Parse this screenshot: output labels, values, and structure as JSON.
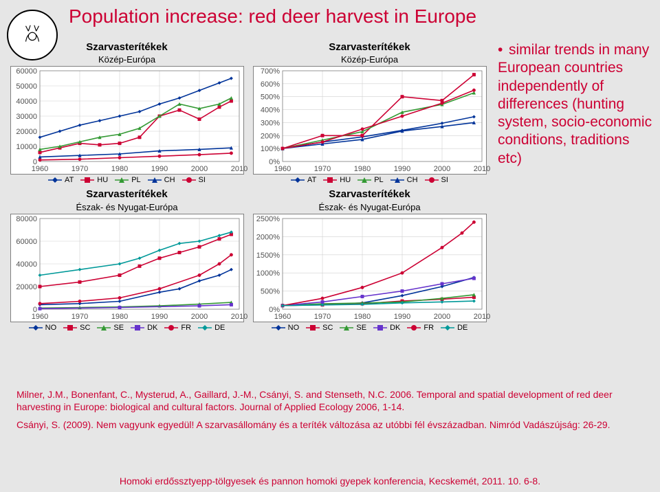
{
  "title": "Population increase: red deer harvest in Europe",
  "bullet": {
    "marker": "•",
    "text": "similar trends in many European countries independently of differences (hunting system, socio-economic conditions, traditions etc)"
  },
  "charts": {
    "common_title": "Szarvasterítékek",
    "regions": {
      "central": "Közép-Európa",
      "north_west": "Észak- és Nyugat-Európa"
    },
    "x_axis": {
      "min": 1960,
      "max": 2010,
      "ticks": [
        1960,
        1970,
        1980,
        1990,
        2000,
        2010
      ]
    },
    "top_left": {
      "type": "line",
      "y_axis": {
        "min": 0,
        "max": 60000,
        "ticks": [
          0,
          10000,
          20000,
          30000,
          40000,
          50000,
          60000
        ]
      },
      "series": [
        {
          "label": "AT",
          "color": "#003399",
          "marker": "diamond",
          "values": [
            {
              "x": 1960,
              "y": 16000
            },
            {
              "x": 1965,
              "y": 20000
            },
            {
              "x": 1970,
              "y": 24000
            },
            {
              "x": 1975,
              "y": 27000
            },
            {
              "x": 1980,
              "y": 30000
            },
            {
              "x": 1985,
              "y": 33000
            },
            {
              "x": 1990,
              "y": 38000
            },
            {
              "x": 1995,
              "y": 42000
            },
            {
              "x": 2000,
              "y": 47000
            },
            {
              "x": 2005,
              "y": 52000
            },
            {
              "x": 2008,
              "y": 55000
            }
          ]
        },
        {
          "label": "HU",
          "color": "#cc0033",
          "marker": "square",
          "values": [
            {
              "x": 1960,
              "y": 6000
            },
            {
              "x": 1965,
              "y": 9000
            },
            {
              "x": 1970,
              "y": 12000
            },
            {
              "x": 1975,
              "y": 11000
            },
            {
              "x": 1980,
              "y": 12000
            },
            {
              "x": 1985,
              "y": 16000
            },
            {
              "x": 1990,
              "y": 30000
            },
            {
              "x": 1995,
              "y": 34000
            },
            {
              "x": 2000,
              "y": 28000
            },
            {
              "x": 2005,
              "y": 36000
            },
            {
              "x": 2008,
              "y": 40000
            }
          ]
        },
        {
          "label": "PL",
          "color": "#339933",
          "marker": "triangle",
          "values": [
            {
              "x": 1960,
              "y": 8000
            },
            {
              "x": 1965,
              "y": 10000
            },
            {
              "x": 1970,
              "y": 13000
            },
            {
              "x": 1975,
              "y": 16000
            },
            {
              "x": 1980,
              "y": 18000
            },
            {
              "x": 1985,
              "y": 22000
            },
            {
              "x": 1990,
              "y": 30000
            },
            {
              "x": 1995,
              "y": 38000
            },
            {
              "x": 2000,
              "y": 35000
            },
            {
              "x": 2005,
              "y": 38000
            },
            {
              "x": 2008,
              "y": 42000
            }
          ]
        },
        {
          "label": "CH",
          "color": "#003399",
          "marker": "triangle",
          "values": [
            {
              "x": 1960,
              "y": 3000
            },
            {
              "x": 1970,
              "y": 4000
            },
            {
              "x": 1980,
              "y": 5000
            },
            {
              "x": 1990,
              "y": 7000
            },
            {
              "x": 2000,
              "y": 8000
            },
            {
              "x": 2008,
              "y": 9000
            }
          ]
        },
        {
          "label": "SI",
          "color": "#cc0033",
          "marker": "circle",
          "values": [
            {
              "x": 1960,
              "y": 1000
            },
            {
              "x": 1970,
              "y": 1500
            },
            {
              "x": 1980,
              "y": 2500
            },
            {
              "x": 1990,
              "y": 3500
            },
            {
              "x": 2000,
              "y": 4500
            },
            {
              "x": 2008,
              "y": 5500
            }
          ]
        }
      ]
    },
    "top_right": {
      "type": "line",
      "y_axis": {
        "min": 0,
        "max": 700,
        "unit": "percent",
        "ticks": [
          0,
          100,
          200,
          300,
          400,
          500,
          600,
          700
        ]
      },
      "series": [
        {
          "label": "AT",
          "color": "#003399",
          "marker": "diamond",
          "values": [
            {
              "x": 1960,
              "y": 100
            },
            {
              "x": 1970,
              "y": 150
            },
            {
              "x": 1980,
              "y": 190
            },
            {
              "x": 1990,
              "y": 240
            },
            {
              "x": 2000,
              "y": 295
            },
            {
              "x": 2008,
              "y": 345
            }
          ]
        },
        {
          "label": "HU",
          "color": "#cc0033",
          "marker": "square",
          "values": [
            {
              "x": 1960,
              "y": 100
            },
            {
              "x": 1970,
              "y": 200
            },
            {
              "x": 1980,
              "y": 200
            },
            {
              "x": 1990,
              "y": 500
            },
            {
              "x": 2000,
              "y": 470
            },
            {
              "x": 2008,
              "y": 670
            }
          ]
        },
        {
          "label": "PL",
          "color": "#339933",
          "marker": "triangle",
          "values": [
            {
              "x": 1960,
              "y": 100
            },
            {
              "x": 1970,
              "y": 165
            },
            {
              "x": 1980,
              "y": 230
            },
            {
              "x": 1990,
              "y": 380
            },
            {
              "x": 2000,
              "y": 440
            },
            {
              "x": 2008,
              "y": 530
            }
          ]
        },
        {
          "label": "CH",
          "color": "#003399",
          "marker": "triangle",
          "values": [
            {
              "x": 1960,
              "y": 100
            },
            {
              "x": 1970,
              "y": 135
            },
            {
              "x": 1980,
              "y": 170
            },
            {
              "x": 1990,
              "y": 235
            },
            {
              "x": 2000,
              "y": 270
            },
            {
              "x": 2008,
              "y": 300
            }
          ]
        },
        {
          "label": "SI",
          "color": "#cc0033",
          "marker": "circle",
          "values": [
            {
              "x": 1960,
              "y": 100
            },
            {
              "x": 1970,
              "y": 150
            },
            {
              "x": 1980,
              "y": 250
            },
            {
              "x": 1990,
              "y": 350
            },
            {
              "x": 2000,
              "y": 450
            },
            {
              "x": 2008,
              "y": 550
            }
          ]
        }
      ]
    },
    "bottom_left": {
      "type": "line",
      "y_axis": {
        "min": 0,
        "max": 80000,
        "ticks": [
          0,
          20000,
          40000,
          60000,
          80000
        ]
      },
      "series": [
        {
          "label": "NO",
          "color": "#003399",
          "marker": "diamond",
          "values": [
            {
              "x": 1960,
              "y": 4000
            },
            {
              "x": 1970,
              "y": 5000
            },
            {
              "x": 1980,
              "y": 7000
            },
            {
              "x": 1990,
              "y": 15000
            },
            {
              "x": 1995,
              "y": 18000
            },
            {
              "x": 2000,
              "y": 25000
            },
            {
              "x": 2005,
              "y": 30000
            },
            {
              "x": 2008,
              "y": 35000
            }
          ]
        },
        {
          "label": "SC",
          "color": "#cc0033",
          "marker": "square",
          "values": [
            {
              "x": 1960,
              "y": 20000
            },
            {
              "x": 1970,
              "y": 24000
            },
            {
              "x": 1980,
              "y": 30000
            },
            {
              "x": 1985,
              "y": 38000
            },
            {
              "x": 1990,
              "y": 45000
            },
            {
              "x": 1995,
              "y": 50000
            },
            {
              "x": 2000,
              "y": 55000
            },
            {
              "x": 2005,
              "y": 62000
            },
            {
              "x": 2008,
              "y": 66000
            }
          ]
        },
        {
          "label": "SE",
          "color": "#339933",
          "marker": "triangle",
          "values": [
            {
              "x": 1960,
              "y": 1000
            },
            {
              "x": 1970,
              "y": 1500
            },
            {
              "x": 1980,
              "y": 2000
            },
            {
              "x": 1990,
              "y": 3000
            },
            {
              "x": 2000,
              "y": 4500
            },
            {
              "x": 2008,
              "y": 6000
            }
          ]
        },
        {
          "label": "DK",
          "color": "#6633cc",
          "marker": "square",
          "values": [
            {
              "x": 1960,
              "y": 500
            },
            {
              "x": 1980,
              "y": 1500
            },
            {
              "x": 2000,
              "y": 3000
            },
            {
              "x": 2008,
              "y": 4000
            }
          ]
        },
        {
          "label": "FR",
          "color": "#cc0033",
          "marker": "circle",
          "values": [
            {
              "x": 1960,
              "y": 5000
            },
            {
              "x": 1970,
              "y": 7000
            },
            {
              "x": 1980,
              "y": 10000
            },
            {
              "x": 1990,
              "y": 18000
            },
            {
              "x": 2000,
              "y": 30000
            },
            {
              "x": 2005,
              "y": 40000
            },
            {
              "x": 2008,
              "y": 48000
            }
          ]
        },
        {
          "label": "DE",
          "color": "#009999",
          "marker": "diamond",
          "values": [
            {
              "x": 1960,
              "y": 30000
            },
            {
              "x": 1970,
              "y": 35000
            },
            {
              "x": 1980,
              "y": 40000
            },
            {
              "x": 1985,
              "y": 45000
            },
            {
              "x": 1990,
              "y": 52000
            },
            {
              "x": 1995,
              "y": 58000
            },
            {
              "x": 2000,
              "y": 60000
            },
            {
              "x": 2005,
              "y": 65000
            },
            {
              "x": 2008,
              "y": 68000
            }
          ]
        }
      ]
    },
    "bottom_right": {
      "type": "line",
      "y_axis": {
        "min": 0,
        "max": 2500,
        "unit": "percent",
        "ticks": [
          0,
          500,
          1000,
          1500,
          2000,
          2500
        ]
      },
      "series": [
        {
          "label": "NO",
          "color": "#003399",
          "marker": "diamond",
          "values": [
            {
              "x": 1960,
              "y": 100
            },
            {
              "x": 1970,
              "y": 125
            },
            {
              "x": 1980,
              "y": 175
            },
            {
              "x": 1990,
              "y": 375
            },
            {
              "x": 2000,
              "y": 625
            },
            {
              "x": 2008,
              "y": 875
            }
          ]
        },
        {
          "label": "SC",
          "color": "#cc0033",
          "marker": "square",
          "values": [
            {
              "x": 1960,
              "y": 100
            },
            {
              "x": 1970,
              "y": 120
            },
            {
              "x": 1980,
              "y": 150
            },
            {
              "x": 1990,
              "y": 225
            },
            {
              "x": 2000,
              "y": 275
            },
            {
              "x": 2008,
              "y": 330
            }
          ]
        },
        {
          "label": "SE",
          "color": "#339933",
          "marker": "triangle",
          "values": [
            {
              "x": 1960,
              "y": 100
            },
            {
              "x": 1970,
              "y": 150
            },
            {
              "x": 1980,
              "y": 170
            },
            {
              "x": 1990,
              "y": 200
            },
            {
              "x": 2000,
              "y": 300
            },
            {
              "x": 2008,
              "y": 400
            }
          ]
        },
        {
          "label": "DK",
          "color": "#6633cc",
          "marker": "square",
          "values": [
            {
              "x": 1960,
              "y": 100
            },
            {
              "x": 1970,
              "y": 200
            },
            {
              "x": 1980,
              "y": 350
            },
            {
              "x": 1990,
              "y": 500
            },
            {
              "x": 2000,
              "y": 700
            },
            {
              "x": 2008,
              "y": 850
            }
          ]
        },
        {
          "label": "FR",
          "color": "#cc0033",
          "marker": "circle",
          "values": [
            {
              "x": 1960,
              "y": 100
            },
            {
              "x": 1970,
              "y": 300
            },
            {
              "x": 1980,
              "y": 600
            },
            {
              "x": 1990,
              "y": 1000
            },
            {
              "x": 2000,
              "y": 1700
            },
            {
              "x": 2005,
              "y": 2100
            },
            {
              "x": 2008,
              "y": 2400
            }
          ]
        },
        {
          "label": "DE",
          "color": "#009999",
          "marker": "diamond",
          "values": [
            {
              "x": 1960,
              "y": 100
            },
            {
              "x": 1970,
              "y": 117
            },
            {
              "x": 1980,
              "y": 135
            },
            {
              "x": 1990,
              "y": 175
            },
            {
              "x": 2000,
              "y": 200
            },
            {
              "x": 2008,
              "y": 225
            }
          ]
        }
      ]
    },
    "legends": {
      "top": [
        {
          "label": "AT",
          "color": "#003399",
          "marker": "diamond"
        },
        {
          "label": "HU",
          "color": "#cc0033",
          "marker": "square"
        },
        {
          "label": "PL",
          "color": "#339933",
          "marker": "triangle"
        },
        {
          "label": "CH",
          "color": "#003399",
          "marker": "triangle"
        },
        {
          "label": "SI",
          "color": "#cc0033",
          "marker": "circle"
        }
      ],
      "bottom": [
        {
          "label": "NO",
          "color": "#003399",
          "marker": "diamond"
        },
        {
          "label": "SC",
          "color": "#cc0033",
          "marker": "square"
        },
        {
          "label": "SE",
          "color": "#339933",
          "marker": "triangle"
        },
        {
          "label": "DK",
          "color": "#6633cc",
          "marker": "square"
        },
        {
          "label": "FR",
          "color": "#cc0033",
          "marker": "circle"
        },
        {
          "label": "DE",
          "color": "#009999",
          "marker": "diamond"
        }
      ]
    },
    "style": {
      "background": "#ffffff",
      "border": "#808080",
      "grid": "#d0d0d0",
      "line_width": 1.6,
      "marker_size": 4.5,
      "axis_font_size": 11
    }
  },
  "references": {
    "r1": "Milner, J.M., Bonenfant, C., Mysterud, A., Gaillard, J.-M., Csányi, S. and Stenseth, N.C. 2006. Temporal and spatial development of red deer harvesting in Europe: biological and cultural factors. Journal of Applied Ecology 2006, 1-14.",
    "r2": "Csányi, S. (2009). Nem vagyunk egyedül! A szarvasállomány és a teríték változása az utóbbi fél évszázadban. Nimród Vadászújság: 26-29."
  },
  "footer": "Homoki erdőssztyepp-tölgyesek és pannon homoki gyepek konferencia, Kecskemét, 2011. 10. 6-8."
}
